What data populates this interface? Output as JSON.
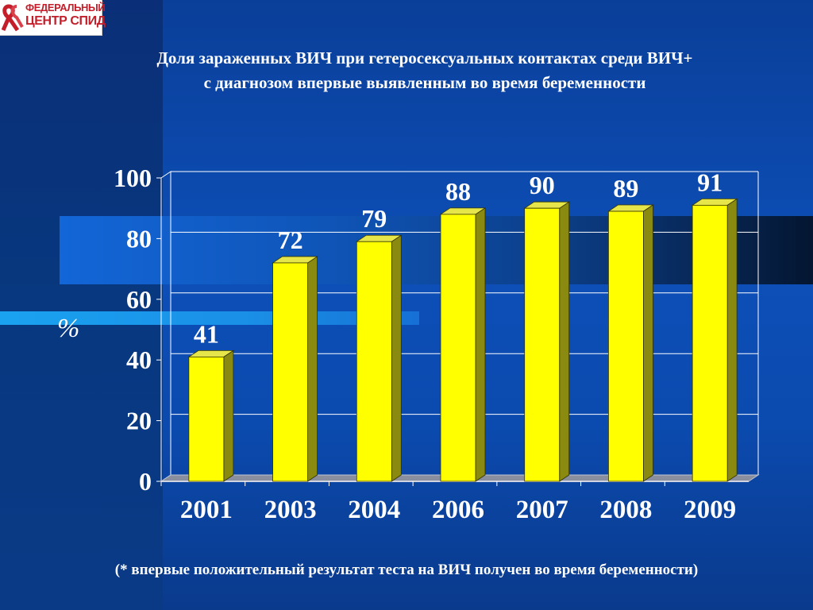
{
  "logo": {
    "line1": "ФЕДЕРАЛЬНЫЙ",
    "line2": "ЦЕНТР СПИД",
    "icon": "red-ribbon-icon"
  },
  "title": {
    "line1": "Доля зараженных ВИЧ при гетеросексуальных контактах среди ВИЧ+",
    "line2": "с диагнозом впервые выявленным во время беременности"
  },
  "footnote": "(* впервые положительный результат теста на ВИЧ получен во время беременности)",
  "colors": {
    "bar_front": "#ffff00",
    "bar_side": "#8a8a10",
    "bar_top": "#e6e64a",
    "text": "#ffffff",
    "grid": "#ffffff"
  },
  "chart_data": {
    "type": "bar",
    "categories": [
      "2001",
      "2003",
      "2004",
      "2006",
      "2007",
      "2008",
      "2009"
    ],
    "values": [
      41,
      72,
      79,
      88,
      90,
      89,
      91
    ],
    "data_labels": [
      "41",
      "72",
      "79",
      "88",
      "90",
      "89",
      "91"
    ],
    "ylabel": "%",
    "ylim": [
      0,
      100
    ],
    "yticks": [
      "0",
      "20",
      "40",
      "60",
      "80",
      "100"
    ],
    "grid": true,
    "style": "3d"
  }
}
